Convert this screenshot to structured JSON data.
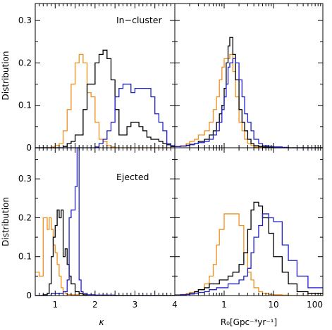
{
  "chart_data": [
    {
      "type": "line",
      "panel": "top-left",
      "annotation": "In−cluster",
      "xlabel": "",
      "ylabel": "Distribution",
      "xlim": [
        0.5,
        4.0
      ],
      "ylim": [
        0,
        0.34
      ],
      "x_ticks": [],
      "y_ticks": [
        0,
        0.1,
        0.2,
        0.3
      ],
      "y_tick_labels": [
        "0",
        "0.1",
        "0.2",
        "0.3"
      ],
      "series": [
        {
          "color": "#f0901c",
          "x": [
            0.5,
            0.6,
            0.7,
            0.8,
            0.9,
            1.0,
            1.1,
            1.2,
            1.3,
            1.4,
            1.5,
            1.6,
            1.7,
            1.8,
            1.9,
            2.0,
            2.1,
            2.2,
            2.3,
            2.4,
            2.5,
            2.6,
            2.7,
            2.8,
            2.9,
            3.0,
            3.1,
            3.2,
            3.3,
            3.4,
            3.5,
            3.6,
            3.7,
            3.8,
            3.9,
            4.0
          ],
          "y": [
            0,
            0,
            0,
            0,
            0.002,
            0.005,
            0.01,
            0.04,
            0.09,
            0.15,
            0.2,
            0.22,
            0.2,
            0.13,
            0.12,
            0.06,
            0.02,
            0.015,
            0.005,
            0.002,
            0,
            0,
            0,
            0,
            0,
            0,
            0,
            0,
            0,
            0,
            0,
            0,
            0,
            0,
            0,
            0
          ]
        },
        {
          "color": "#000000",
          "x": [
            0.5,
            0.6,
            0.7,
            0.8,
            0.9,
            1.0,
            1.1,
            1.2,
            1.3,
            1.4,
            1.5,
            1.6,
            1.7,
            1.8,
            1.9,
            2.0,
            2.1,
            2.2,
            2.3,
            2.4,
            2.5,
            2.6,
            2.7,
            2.8,
            2.9,
            3.0,
            3.1,
            3.2,
            3.3,
            3.4,
            3.5,
            3.6,
            3.7,
            3.8,
            3.9,
            4.0
          ],
          "y": [
            0,
            0,
            0,
            0,
            0,
            0,
            0,
            0.003,
            0.01,
            0.015,
            0.03,
            0.03,
            0.09,
            0.15,
            0.15,
            0.2,
            0.22,
            0.23,
            0.21,
            0.16,
            0.09,
            0.03,
            0.03,
            0.05,
            0.06,
            0.06,
            0.05,
            0.04,
            0.025,
            0.02,
            0.02,
            0.015,
            0.01,
            0.007,
            0.003,
            0
          ]
        },
        {
          "color": "#2020cc",
          "x": [
            0.5,
            0.6,
            0.7,
            0.8,
            0.9,
            1.0,
            1.1,
            1.2,
            1.3,
            1.4,
            1.5,
            1.6,
            1.7,
            1.8,
            1.9,
            2.0,
            2.1,
            2.2,
            2.3,
            2.4,
            2.5,
            2.6,
            2.7,
            2.8,
            2.9,
            3.0,
            3.1,
            3.2,
            3.3,
            3.4,
            3.5,
            3.6,
            3.7,
            3.8,
            3.9,
            4.0
          ],
          "y": [
            0,
            0,
            0,
            0,
            0,
            0,
            0,
            0,
            0,
            0,
            0,
            0,
            0,
            0,
            0,
            0.002,
            0.01,
            0.02,
            0.04,
            0.06,
            0.12,
            0.14,
            0.15,
            0.15,
            0.13,
            0.14,
            0.14,
            0.14,
            0.14,
            0.12,
            0.08,
            0.06,
            0.04,
            0.01,
            0.005,
            0
          ]
        }
      ]
    },
    {
      "type": "line",
      "panel": "top-right",
      "annotation": "",
      "xlabel": "",
      "ylabel": "",
      "xscale": "log",
      "xlim": [
        0.1,
        100
      ],
      "ylim": [
        0,
        0.34
      ],
      "x_ticks": [],
      "y_ticks": [],
      "y_tick_labels": [],
      "series": [
        {
          "color": "#f0901c",
          "x": [
            0.1,
            0.13,
            0.17,
            0.2,
            0.25,
            0.3,
            0.4,
            0.5,
            0.6,
            0.7,
            0.8,
            0.9,
            1.0,
            1.1,
            1.2,
            1.3,
            1.5,
            1.7,
            2.0,
            2.3,
            2.6,
            3.0,
            3.5,
            4.0,
            5.0,
            6.0,
            8.0,
            10,
            15,
            20,
            30,
            50,
            100
          ],
          "y": [
            0.003,
            0.005,
            0.01,
            0.015,
            0.02,
            0.03,
            0.04,
            0.06,
            0.09,
            0.12,
            0.16,
            0.19,
            0.21,
            0.21,
            0.21,
            0.22,
            0.18,
            0.12,
            0.06,
            0.04,
            0.02,
            0.01,
            0.005,
            0.002,
            0.001,
            0,
            0,
            0,
            0,
            0,
            0,
            0,
            0
          ]
        },
        {
          "color": "#000000",
          "x": [
            0.1,
            0.13,
            0.17,
            0.2,
            0.25,
            0.3,
            0.4,
            0.5,
            0.6,
            0.7,
            0.8,
            0.9,
            1.0,
            1.1,
            1.2,
            1.3,
            1.5,
            1.7,
            2.0,
            2.3,
            2.6,
            3.0,
            3.5,
            4.0,
            5.0,
            6.0,
            8.0,
            10,
            15,
            20,
            30,
            50,
            100
          ],
          "y": [
            0.003,
            0.004,
            0.006,
            0.008,
            0.01,
            0.015,
            0.02,
            0.03,
            0.04,
            0.06,
            0.08,
            0.1,
            0.14,
            0.2,
            0.24,
            0.26,
            0.22,
            0.16,
            0.09,
            0.06,
            0.04,
            0.02,
            0.01,
            0.005,
            0.003,
            0.002,
            0.001,
            0,
            0,
            0,
            0,
            0,
            0
          ]
        },
        {
          "color": "#2020cc",
          "x": [
            0.1,
            0.13,
            0.17,
            0.2,
            0.25,
            0.3,
            0.4,
            0.5,
            0.6,
            0.7,
            0.8,
            0.9,
            1.0,
            1.1,
            1.2,
            1.3,
            1.5,
            1.7,
            2.0,
            2.3,
            2.6,
            3.0,
            3.5,
            4.0,
            5.0,
            6.0,
            8.0,
            10,
            15,
            20,
            30,
            50,
            100
          ],
          "y": [
            0.003,
            0.004,
            0.005,
            0.007,
            0.01,
            0.012,
            0.015,
            0.02,
            0.03,
            0.04,
            0.06,
            0.09,
            0.12,
            0.15,
            0.19,
            0.2,
            0.21,
            0.2,
            0.16,
            0.12,
            0.08,
            0.06,
            0.04,
            0.02,
            0.01,
            0.005,
            0.003,
            0.002,
            0.001,
            0,
            0,
            0,
            0
          ]
        }
      ]
    },
    {
      "type": "line",
      "panel": "bottom-left",
      "annotation": "Ejected",
      "xlabel": "κ",
      "ylabel": "Distribution",
      "xlim": [
        0.5,
        4.0
      ],
      "ylim": [
        0,
        0.38
      ],
      "x_ticks": [
        1,
        2,
        3,
        4
      ],
      "x_tick_labels": [
        "1",
        "2",
        "3",
        "4"
      ],
      "y_ticks": [
        0,
        0.1,
        0.2,
        0.3
      ],
      "y_tick_labels": [
        "0",
        "0.1",
        "0.2",
        "0.3"
      ],
      "series": [
        {
          "color": "#f0901c",
          "x": [
            0.5,
            0.6,
            0.7,
            0.8,
            0.85,
            0.9,
            0.95,
            1.0,
            1.05,
            1.1,
            1.15,
            1.2,
            1.25,
            1.3,
            1.4,
            1.5,
            1.6,
            1.7,
            1.8,
            2.0,
            2.5,
            3.0,
            3.5,
            4.0
          ],
          "y": [
            0.06,
            0.05,
            0.2,
            0.17,
            0.2,
            0.17,
            0.13,
            0.11,
            0.08,
            0.05,
            0.02,
            0.01,
            0.005,
            0.003,
            0.002,
            0.002,
            0.001,
            0.001,
            0.001,
            0.001,
            0,
            0,
            0,
            0
          ]
        },
        {
          "color": "#000000",
          "x": [
            0.5,
            0.6,
            0.7,
            0.8,
            0.85,
            0.9,
            0.95,
            1.0,
            1.05,
            1.1,
            1.15,
            1.2,
            1.25,
            1.3,
            1.35,
            1.4,
            1.5,
            1.6,
            1.7,
            1.8,
            2.0,
            2.5,
            3.0,
            3.5,
            4.0
          ],
          "y": [
            0,
            0,
            0.002,
            0.005,
            0.03,
            0.1,
            0.15,
            0.18,
            0.22,
            0.2,
            0.22,
            0.1,
            0.12,
            0.08,
            0.05,
            0.03,
            0.01,
            0.005,
            0.002,
            0.001,
            0,
            0,
            0,
            0,
            0
          ]
        },
        {
          "color": "#2020cc",
          "x": [
            0.5,
            0.6,
            0.7,
            0.8,
            0.9,
            1.0,
            1.1,
            1.2,
            1.3,
            1.35,
            1.4,
            1.45,
            1.5,
            1.55,
            1.6,
            1.65,
            1.7,
            1.8,
            2.0,
            2.5,
            3.0,
            3.5,
            4.0
          ],
          "y": [
            0,
            0,
            0,
            0,
            0.005,
            0.005,
            0.005,
            0.01,
            0.04,
            0.2,
            0.22,
            0.22,
            0.28,
            0.38,
            0.04,
            0.01,
            0.005,
            0.002,
            0.001,
            0,
            0,
            0,
            0
          ]
        }
      ]
    },
    {
      "type": "line",
      "panel": "bottom-right",
      "annotation": "",
      "xlabel": "R₀[Gpc⁻³yr⁻¹]",
      "ylabel": "",
      "xscale": "log",
      "xlim": [
        0.1,
        100
      ],
      "ylim": [
        0,
        0.38
      ],
      "x_ticks": [
        1,
        10,
        100
      ],
      "x_tick_labels": [
        "1",
        "10",
        "100"
      ],
      "y_ticks": [],
      "y_tick_labels": [],
      "series": [
        {
          "color": "#f0901c",
          "x": [
            0.1,
            0.13,
            0.17,
            0.2,
            0.25,
            0.3,
            0.4,
            0.5,
            0.6,
            0.7,
            0.8,
            1.0,
            1.2,
            1.5,
            2.0,
            2.5,
            3.0,
            3.5,
            4.0,
            5.0,
            6.0,
            8.0,
            10,
            15,
            20,
            30,
            50,
            100
          ],
          "y": [
            0.002,
            0.003,
            0.005,
            0.008,
            0.01,
            0.015,
            0.03,
            0.05,
            0.08,
            0.13,
            0.17,
            0.21,
            0.21,
            0.21,
            0.18,
            0.11,
            0.06,
            0.04,
            0.02,
            0.01,
            0.005,
            0.003,
            0.002,
            0.001,
            0,
            0,
            0,
            0
          ]
        },
        {
          "color": "#000000",
          "x": [
            0.1,
            0.13,
            0.17,
            0.2,
            0.25,
            0.3,
            0.4,
            0.5,
            0.6,
            0.7,
            0.8,
            1.0,
            1.2,
            1.5,
            2.0,
            2.5,
            3.0,
            3.5,
            4.0,
            5.0,
            6.0,
            8.0,
            10,
            15,
            20,
            30,
            50,
            100
          ],
          "y": [
            0.001,
            0.002,
            0.003,
            0.005,
            0.01,
            0.015,
            0.02,
            0.03,
            0.03,
            0.03,
            0.04,
            0.04,
            0.05,
            0.06,
            0.08,
            0.11,
            0.17,
            0.22,
            0.24,
            0.23,
            0.2,
            0.16,
            0.1,
            0.06,
            0.03,
            0.01,
            0.005,
            0.002
          ]
        },
        {
          "color": "#2020cc",
          "x": [
            0.1,
            0.13,
            0.17,
            0.2,
            0.25,
            0.3,
            0.4,
            0.5,
            0.6,
            0.7,
            0.8,
            1.0,
            1.2,
            1.5,
            2.0,
            2.5,
            3.0,
            3.5,
            4.0,
            5.0,
            6.0,
            8.0,
            10,
            15,
            20,
            30,
            50,
            100
          ],
          "y": [
            0.001,
            0.002,
            0.003,
            0.004,
            0.006,
            0.008,
            0.01,
            0.015,
            0.015,
            0.02,
            0.02,
            0.02,
            0.03,
            0.03,
            0.04,
            0.05,
            0.07,
            0.11,
            0.15,
            0.18,
            0.21,
            0.2,
            0.19,
            0.13,
            0.09,
            0.05,
            0.02,
            0.005
          ]
        }
      ]
    }
  ]
}
